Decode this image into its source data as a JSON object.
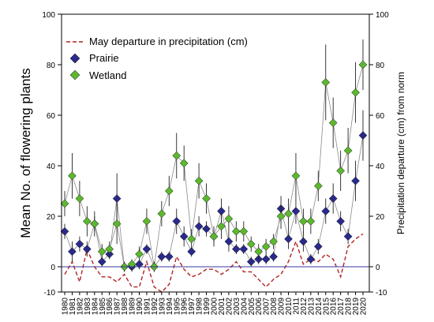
{
  "chart_data": {
    "type": "line",
    "title": "",
    "ylabel": "Mean No. of flowering plants",
    "y2label": "Precipitation departure (cm) from norm",
    "xlabel": "",
    "ylim": [
      -10,
      100
    ],
    "y2lim": [
      -10,
      100
    ],
    "yticks": [
      -10,
      0,
      20,
      40,
      60,
      80,
      100
    ],
    "legend_position": "top-left",
    "grid": false,
    "x": [
      1980,
      1981,
      1982,
      1983,
      1984,
      1985,
      1986,
      1987,
      1988,
      1989,
      1990,
      1991,
      1992,
      1993,
      1994,
      1995,
      1996,
      1997,
      1998,
      1999,
      2000,
      2001,
      2002,
      2003,
      2004,
      2005,
      2006,
      2007,
      2008,
      2009,
      2010,
      2011,
      2012,
      2013,
      2014,
      2015,
      2016,
      2017,
      2018,
      2019,
      2020
    ],
    "x_tick_labels": [
      "1980",
      "1981",
      "1982",
      "1983",
      "1984",
      "1985",
      "1986",
      "1987",
      "1988",
      "1989",
      "1990",
      "1991",
      "1992",
      "1993",
      "1994",
      "1995",
      "1996",
      "1997",
      "1998",
      "1999",
      "2000",
      "2001",
      "2002",
      "2003",
      "2004",
      "2005",
      "2006",
      "2007",
      "2008",
      "2009",
      "2010",
      "2011",
      "2012",
      "2013",
      "2014",
      "2015",
      "2016",
      "2017",
      "2018",
      "2019",
      "2020"
    ],
    "series": [
      {
        "name": "May departure in precipitation (cm)",
        "kind": "dashed-line",
        "color": "#b22222",
        "values": [
          -3,
          2,
          -6,
          7,
          0,
          -4,
          -4,
          -6,
          -3,
          -8,
          -8,
          2,
          -8,
          -10,
          -7,
          4,
          -1,
          -4,
          -3,
          -1,
          -1,
          -3,
          -1,
          2,
          -2,
          -2,
          -5,
          -8,
          -5,
          -3,
          2,
          10,
          1,
          3,
          2,
          5,
          3,
          -4,
          8,
          11,
          13
        ]
      },
      {
        "name": "Prairie",
        "kind": "markers-diamond",
        "color": "#2a2a8c",
        "values": [
          14,
          6,
          9,
          7,
          17,
          2,
          5,
          27,
          0,
          0,
          1,
          7,
          0,
          4,
          4,
          18,
          12,
          6,
          16,
          15,
          12,
          22,
          10,
          7,
          7,
          2,
          3,
          3,
          4,
          23,
          11,
          22,
          10,
          3,
          8,
          22,
          27,
          18,
          12,
          34,
          52
        ],
        "errors": [
          3,
          4,
          3,
          3,
          3,
          2,
          2,
          10,
          2,
          2,
          2,
          2,
          2,
          2,
          2,
          5,
          4,
          2,
          4,
          3,
          3,
          5,
          4,
          2,
          2,
          2,
          2,
          2,
          2,
          5,
          4,
          5,
          4,
          2,
          3,
          5,
          6,
          4,
          3,
          8,
          10
        ]
      },
      {
        "name": "Wetland",
        "kind": "markers-diamond",
        "color": "#5cb82e",
        "values": [
          25,
          36,
          27,
          18,
          17,
          6,
          7,
          17,
          0,
          1,
          5,
          18,
          0,
          21,
          30,
          44,
          41,
          11,
          34,
          27,
          12,
          16,
          19,
          14,
          14,
          9,
          6,
          8,
          10,
          20,
          21,
          36,
          18,
          18,
          32,
          73,
          57,
          38,
          46,
          69,
          80
        ],
        "errors": [
          5,
          9,
          7,
          6,
          5,
          3,
          3,
          8,
          2,
          2,
          3,
          5,
          2,
          5,
          6,
          9,
          7,
          4,
          7,
          6,
          4,
          5,
          5,
          4,
          4,
          3,
          3,
          3,
          3,
          5,
          6,
          9,
          5,
          5,
          6,
          15,
          10,
          8,
          9,
          12,
          10
        ]
      }
    ]
  }
}
